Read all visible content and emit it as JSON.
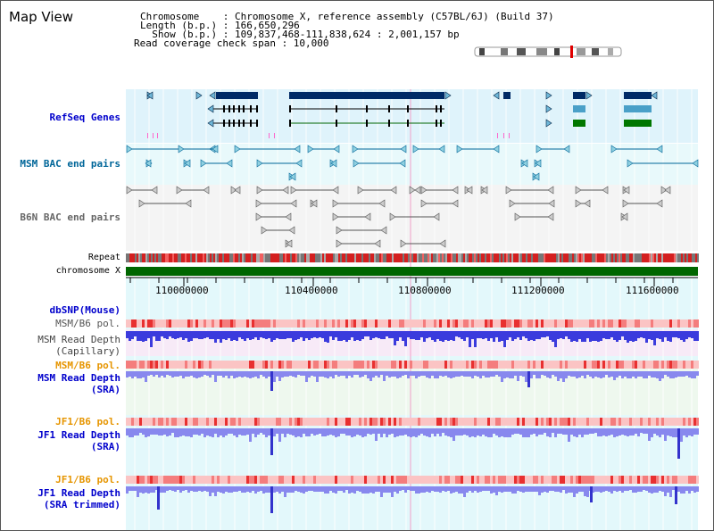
{
  "title": "Map View",
  "info": {
    "chromosome": "Chromosome    : Chromosome X, reference assembly (C57BL/6J) (Build 37)",
    "length": "Length (b.p.) : 166,650,296",
    "show": "  Show (b.p.) : 109,837,468-111,838,624 : 2,001,157 bp",
    "coverage": "Read coverage check span : 10,000"
  },
  "tracks": {
    "refseq": "RefSeq Genes",
    "msm_bac": "MSM BAC end pairs",
    "b6n_bac": "B6N BAC end pairs",
    "repeat": "Repeat",
    "chromosome": "chromosome X",
    "dbsnp": "dbSNP(Mouse)",
    "msm_b6_pol_1": "MSM/B6 pol.",
    "msm_depth_cap_1": "MSM Read Depth",
    "msm_depth_cap_2": "(Capillary)",
    "msm_b6_pol_2": "MSM/B6 pol.",
    "msm_depth_sra_1": "MSM Read Depth",
    "msm_depth_sra_2": "(SRA)",
    "jf1_b6_pol_1": "JF1/B6 pol.",
    "jf1_depth_sra_1": "JF1 Read Depth",
    "jf1_depth_sra_2": "(SRA)",
    "jf1_b6_pol_2": "JF1/B6 pol.",
    "jf1_depth_trim_1": "JF1 Read Depth",
    "jf1_depth_trim_2": "(SRA trimmed)"
  },
  "ruler": {
    "ticks": [
      "110000000",
      "110400000",
      "110800000",
      "111200000",
      "111600000"
    ]
  },
  "colors": {
    "refseq_label": "#0000cc",
    "bac_label": "#006699",
    "orange_label": "#e69500",
    "blue_label": "#0000cc",
    "gene_navy": "#002a66",
    "gene_green": "#007700",
    "chromosome_bar": "#006600"
  }
}
